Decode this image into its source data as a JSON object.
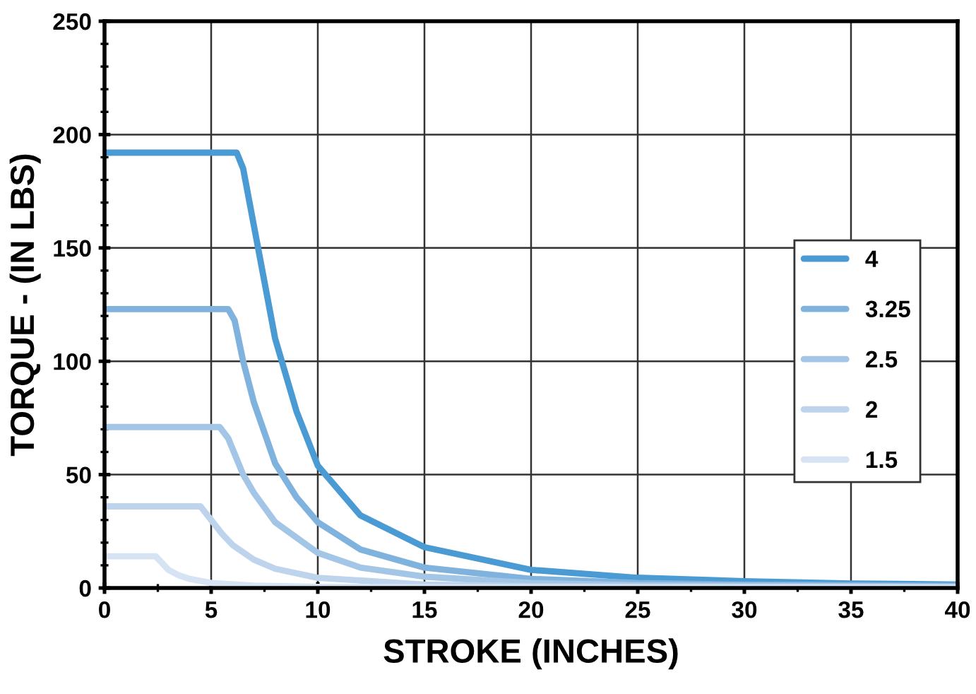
{
  "chart_data": {
    "type": "line",
    "xlabel": "STROKE (INCHES)",
    "ylabel": "TORQUE - (IN LBS)",
    "xlim": [
      0,
      40
    ],
    "xticks": [
      0,
      5,
      10,
      15,
      20,
      25,
      30,
      35,
      40
    ],
    "ylim": [
      0,
      250
    ],
    "yticks": [
      0,
      50,
      100,
      150,
      200,
      250
    ],
    "grid": true,
    "legend": "right",
    "marker": "none",
    "line_style": "solid",
    "series": [
      {
        "name": "4",
        "color": "#4a9ad4",
        "x": [
          0,
          6.2,
          6.5,
          7,
          7.5,
          8,
          9,
          10,
          12,
          15,
          20,
          25,
          30,
          35,
          40
        ],
        "values": [
          192,
          192,
          185,
          160,
          135,
          110,
          78,
          54,
          32,
          18,
          8,
          4.5,
          3,
          2,
          1.5
        ]
      },
      {
        "name": "3.25",
        "color": "#80b2de",
        "x": [
          0,
          5.8,
          6.1,
          6.5,
          7,
          8,
          9,
          10,
          12,
          15,
          20,
          25,
          30,
          40
        ],
        "values": [
          123,
          123,
          118,
          100,
          82,
          55,
          40,
          29,
          17,
          9,
          4,
          2.2,
          1.5,
          1
        ]
      },
      {
        "name": "2.5",
        "color": "#a3c6e6",
        "x": [
          0,
          5.4,
          5.8,
          6.5,
          7,
          8,
          10,
          12,
          15,
          20,
          25,
          30,
          40
        ],
        "values": [
          71,
          71,
          66,
          50,
          42,
          29,
          15.5,
          9,
          5,
          2.2,
          1.3,
          1,
          0.6
        ]
      },
      {
        "name": "2",
        "color": "#bdd4ec",
        "x": [
          0,
          4.5,
          5,
          5.5,
          6,
          7,
          8,
          10,
          15,
          20,
          40
        ],
        "values": [
          36,
          36,
          30,
          24,
          19,
          12.5,
          8.5,
          4.5,
          1.5,
          0.8,
          0.3
        ]
      },
      {
        "name": "1.5",
        "color": "#d5e3f3",
        "x": [
          0,
          2.4,
          3,
          3.5,
          4,
          5,
          7,
          10,
          20,
          40
        ],
        "values": [
          14,
          14,
          8,
          5.5,
          4,
          2.2,
          1,
          0.5,
          0.2,
          0.1
        ]
      }
    ]
  }
}
